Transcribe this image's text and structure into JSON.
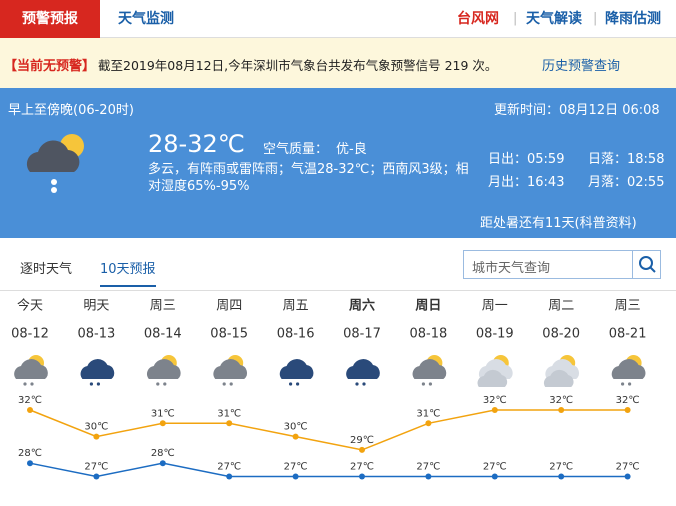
{
  "nav": {
    "tabs": [
      "预警预报",
      "天气监测"
    ],
    "links": [
      "台风网",
      "天气解读",
      "降雨估测"
    ]
  },
  "alert": {
    "label": "【当前无预警】",
    "text": "截至2019年08月12日,今年深圳市气象台共发布气象预警信号 219 次。",
    "link": "历史预警查询"
  },
  "today": {
    "period": "早上至傍晚(06-20时)",
    "temp": "28-32℃",
    "air_label": "空气质量：",
    "air_value": "优-良",
    "desc": "多云，有阵雨或雷阵雨；气温28-32℃；西南风3级；相对湿度65%-95%",
    "update": "更新时间：08月12日 06:08",
    "sunrise": "日出：05:59",
    "sunset": "日落：18:58",
    "moonrise": "月出：16:43",
    "moonset": "月落：02:55",
    "note": "距处暑还有11天(科普资料)"
  },
  "forecast_tabs": [
    "逐时天气",
    "10天预报"
  ],
  "search": {
    "placeholder": "城市天气查询"
  },
  "chart_data": {
    "type": "line",
    "weekdays": [
      "今天",
      "明天",
      "周三",
      "周四",
      "周五",
      "周六",
      "周日",
      "周一",
      "周二",
      "周三"
    ],
    "categories": [
      "08-12",
      "08-13",
      "08-14",
      "08-15",
      "08-16",
      "08-17",
      "08-18",
      "08-19",
      "08-20",
      "08-21"
    ],
    "series": [
      {
        "color": "#f2a30f",
        "values": [
          32,
          30,
          31,
          31,
          30,
          29,
          31,
          32,
          32,
          32
        ],
        "value_labels": [
          "32℃",
          "30℃",
          "31℃",
          "31℃",
          "30℃",
          "29℃",
          "31℃",
          "32℃",
          "32℃",
          "32℃"
        ]
      },
      {
        "color": "#1c6cc2",
        "values": [
          28,
          27,
          28,
          27,
          27,
          27,
          27,
          27,
          27,
          27
        ],
        "value_labels": [
          "28℃",
          "27℃",
          "28℃",
          "27℃",
          "27℃",
          "27℃",
          "27℃",
          "27℃",
          "27℃",
          "27℃"
        ]
      }
    ]
  }
}
